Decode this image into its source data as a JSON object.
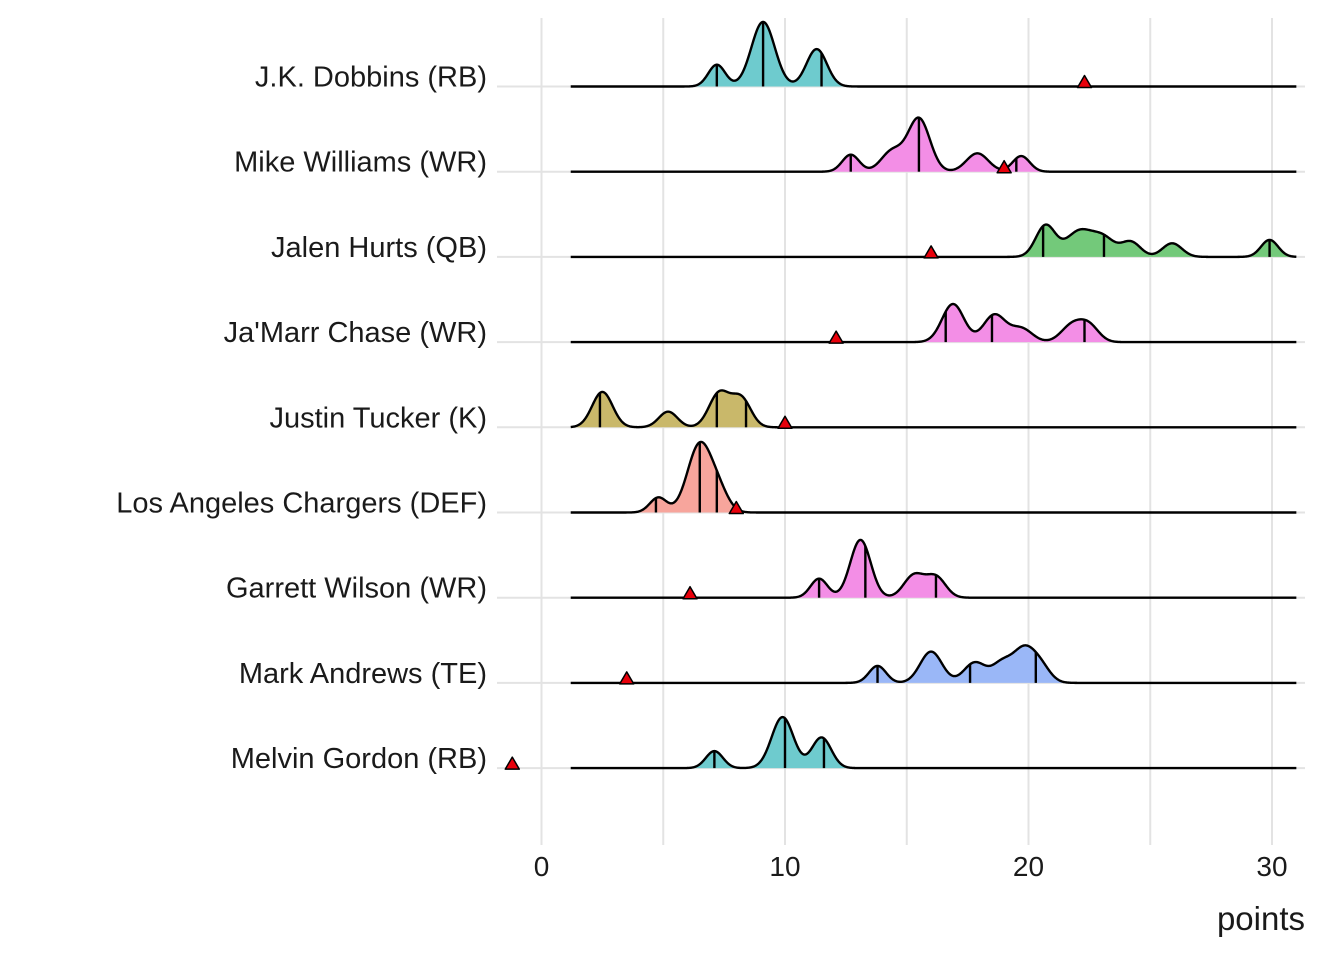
{
  "chart_data": {
    "type": "ridgeline",
    "xlabel": "points",
    "xlim": [
      -1.2,
      31.2
    ],
    "xticks": [
      0,
      10,
      20,
      30
    ],
    "xtick_labels": [
      "0",
      "10",
      "20",
      "30"
    ],
    "grid": true,
    "rows": [
      {
        "label": "J.K. Dobbins (RB)",
        "position": "RB",
        "color": "#6ecbce",
        "range": [
          1.2,
          31.0
        ],
        "peaks": [
          [
            7.2,
            0.32,
            0.35
          ],
          [
            9.1,
            0.95,
            0.48
          ],
          [
            11.3,
            0.55,
            0.42
          ]
        ],
        "quartiles": [
          7.2,
          9.1,
          11.5
        ],
        "marker": 22.3
      },
      {
        "label": "Mike Williams (WR)",
        "position": "WR",
        "color": "#f38ee6",
        "range": [
          1.2,
          31.0
        ],
        "peaks": [
          [
            12.7,
            0.25,
            0.35
          ],
          [
            14.4,
            0.3,
            0.45
          ],
          [
            15.5,
            0.78,
            0.45
          ],
          [
            17.9,
            0.27,
            0.45
          ],
          [
            19.7,
            0.23,
            0.35
          ]
        ],
        "quartiles": [
          12.7,
          15.5,
          19.5
        ],
        "marker": 19.0
      },
      {
        "label": "Jalen Hurts (QB)",
        "position": "QB",
        "color": "#73c97a",
        "range": [
          1.2,
          31.0
        ],
        "peaks": [
          [
            20.7,
            0.46,
            0.4
          ],
          [
            22.1,
            0.38,
            0.55
          ],
          [
            23.1,
            0.25,
            0.45
          ],
          [
            24.2,
            0.22,
            0.4
          ],
          [
            25.9,
            0.2,
            0.4
          ],
          [
            29.9,
            0.25,
            0.35
          ]
        ],
        "quartiles": [
          20.6,
          23.1,
          29.9
        ],
        "marker": 16.0
      },
      {
        "label": "Ja'Marr Chase (WR)",
        "position": "WR",
        "color": "#f38ee6",
        "range": [
          1.2,
          31.0
        ],
        "peaks": [
          [
            16.9,
            0.56,
            0.45
          ],
          [
            18.6,
            0.4,
            0.45
          ],
          [
            19.7,
            0.2,
            0.45
          ],
          [
            21.8,
            0.25,
            0.45
          ],
          [
            22.5,
            0.22,
            0.4
          ]
        ],
        "quartiles": [
          16.6,
          18.5,
          22.3
        ],
        "marker": 12.1
      },
      {
        "label": "Justin Tucker (K)",
        "position": "K",
        "color": "#c9b86a",
        "range": [
          1.2,
          31.0
        ],
        "peaks": [
          [
            2.5,
            0.52,
            0.42
          ],
          [
            5.2,
            0.23,
            0.38
          ],
          [
            7.3,
            0.5,
            0.42
          ],
          [
            8.2,
            0.42,
            0.4
          ]
        ],
        "quartiles": [
          2.4,
          7.2,
          8.4
        ],
        "marker": 10.0
      },
      {
        "label": "Los Angeles Chargers (DEF)",
        "position": "DEF",
        "color": "#f7a59c",
        "range": [
          1.2,
          31.0
        ],
        "peaks": [
          [
            4.8,
            0.22,
            0.35
          ],
          [
            6.5,
            1.0,
            0.5
          ],
          [
            7.3,
            0.25,
            0.4
          ]
        ],
        "quartiles": [
          4.7,
          6.5,
          7.2
        ],
        "marker": 8.0
      },
      {
        "label": "Garrett Wilson (WR)",
        "position": "WR",
        "color": "#f38ee6",
        "range": [
          1.2,
          31.0
        ],
        "peaks": [
          [
            11.4,
            0.28,
            0.35
          ],
          [
            13.1,
            0.85,
            0.42
          ],
          [
            15.3,
            0.33,
            0.42
          ],
          [
            16.2,
            0.3,
            0.4
          ]
        ],
        "quartiles": [
          11.4,
          13.3,
          16.2
        ],
        "marker": 6.1
      },
      {
        "label": "Mark Andrews (TE)",
        "position": "TE",
        "color": "#9ab7f7",
        "range": [
          1.2,
          31.0
        ],
        "peaks": [
          [
            13.8,
            0.25,
            0.35
          ],
          [
            16.0,
            0.46,
            0.45
          ],
          [
            17.8,
            0.3,
            0.45
          ],
          [
            18.9,
            0.27,
            0.4
          ],
          [
            19.8,
            0.48,
            0.45
          ],
          [
            20.5,
            0.22,
            0.4
          ]
        ],
        "quartiles": [
          13.8,
          17.6,
          20.3
        ],
        "marker": 3.5
      },
      {
        "label": "Melvin Gordon (RB)",
        "position": "RB",
        "color": "#6ecbce",
        "range": [
          1.2,
          31.0
        ],
        "peaks": [
          [
            7.1,
            0.25,
            0.35
          ],
          [
            9.9,
            0.75,
            0.45
          ],
          [
            11.5,
            0.45,
            0.4
          ]
        ],
        "quartiles": [
          7.1,
          10.0,
          11.6
        ],
        "marker": -1.2
      }
    ]
  }
}
